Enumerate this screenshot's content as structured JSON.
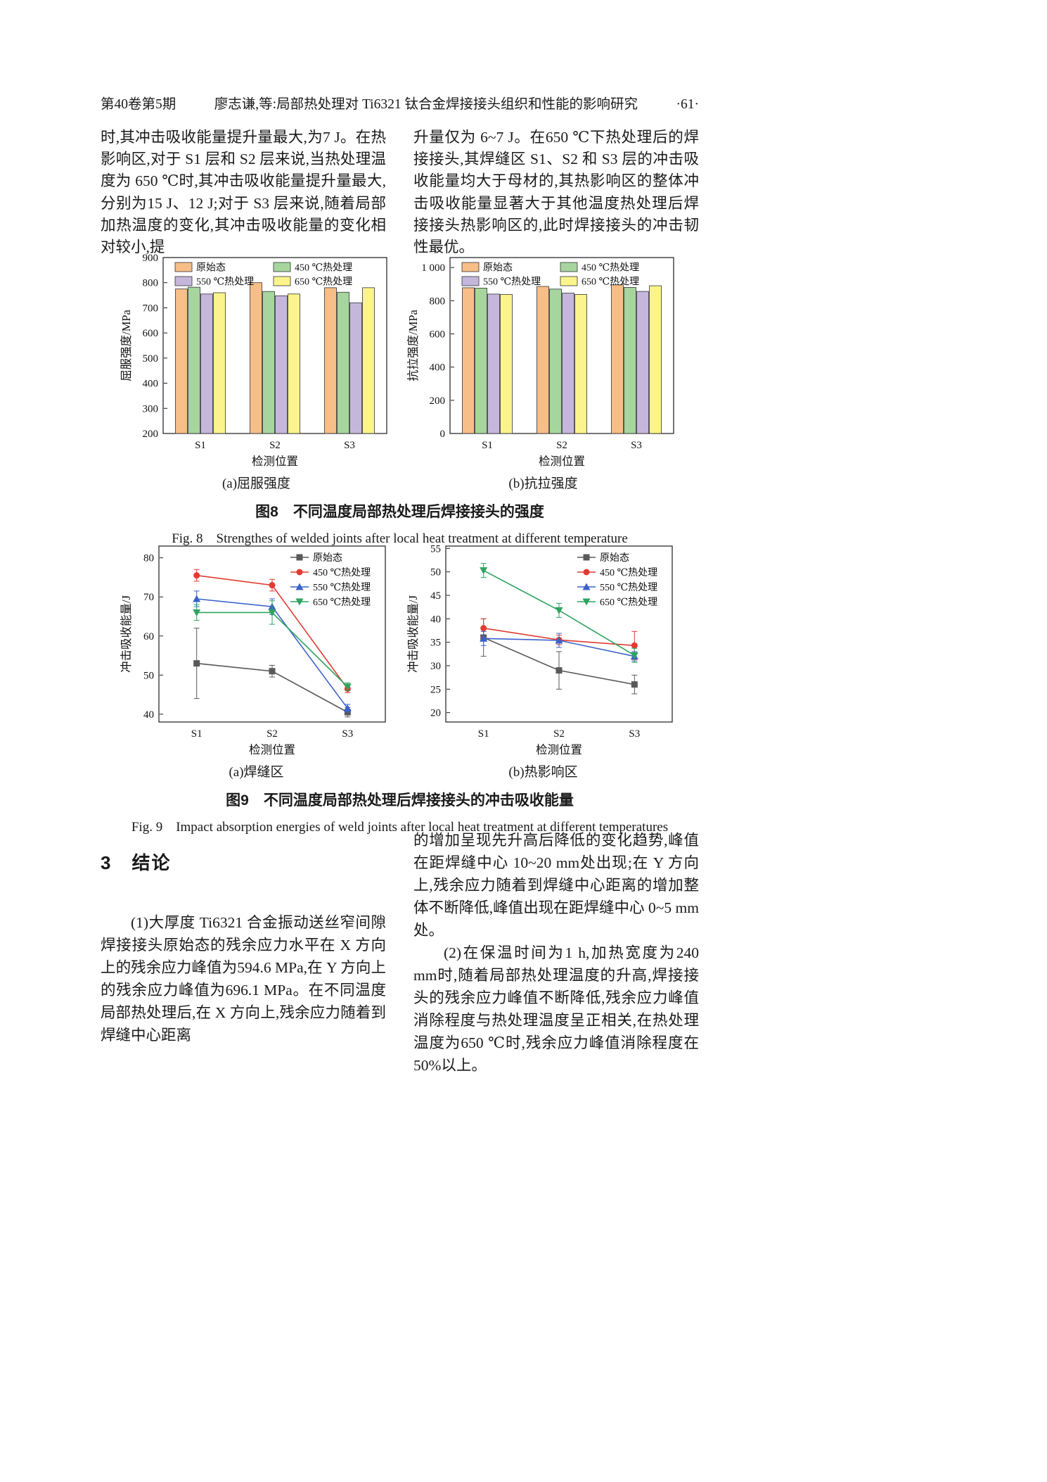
{
  "header": {
    "volume_issue": "第40卷第5期",
    "title": "廖志谦,等:局部热处理对 Ti6321 钛合金焊接接头组织和性能的影响研究",
    "page_number": "·61·"
  },
  "body_top": {
    "left": "时,其冲击吸收能量提升量最大,为7 J。在热影响区,对于 S1 层和 S2 层来说,当热处理温度为 650 ℃时,其冲击吸收能量提升量最大,分别为15 J、12 J;对于 S3 层来说,随着局部加热温度的变化,其冲击吸收能量的变化相对较小,提",
    "right": "升量仅为 6~7 J。在650 ℃下热处理后的焊接接头,其焊缝区 S1、S2 和 S3 层的冲击吸收能量均大于母材的,其热影响区的整体冲击吸收能量显著大于其他温度热处理后焊接接头热影响区的,此时焊接接头的冲击韧性最优。"
  },
  "figure8": {
    "sub_a": "(a)屈服强度",
    "sub_b": "(b)抗拉强度",
    "caption_cn": "图8　不同温度局部热处理后焊接接头的强度",
    "caption_en": "Fig. 8　Strengthes of welded joints after local heat treatment at different temperature"
  },
  "figure9": {
    "sub_a": "(a)焊缝区",
    "sub_b": "(b)热影响区",
    "caption_cn": "图9　不同温度局部热处理后焊接接头的冲击吸收能量",
    "caption_en": "Fig. 9　Impact absorption energies of weld joints after local heat treatment at different temperatures"
  },
  "conclusion": {
    "heading": "3　结论",
    "p1": "(1)大厚度 Ti6321 合金振动送丝窄间隙焊接接头原始态的残余应力水平在 X 方向上的残余应力峰值为594.6 MPa,在 Y 方向上的残余应力峰值为696.1 MPa。在不同温度局部热处理后,在 X 方向上,残余应力随着到焊缝中心距离",
    "p2": "的增加呈现先升高后降低的变化趋势,峰值在距焊缝中心 10~20 mm处出现;在 Y 方向上,残余应力随着到焊缝中心距离的增加整体不断降低,峰值出现在距焊缝中心 0~5 mm处。",
    "p3": "(2)在保温时间为1 h,加热宽度为240 mm时,随着局部热处理温度的升高,焊接接头的残余应力峰值不断降低,残余应力峰值消除程度与热处理温度呈正相关,在热处理温度为650 ℃时,残余应力峰值消除程度在 50%以上。"
  },
  "chart_data": [
    {
      "id": "chart-8a",
      "type": "bar",
      "xlabel": "检测位置",
      "ylabel": "屈服强度/MPa",
      "ylim": [
        200,
        900
      ],
      "yticks": [
        200,
        300,
        400,
        500,
        600,
        700,
        800,
        900
      ],
      "categories": [
        "S1",
        "S2",
        "S3"
      ],
      "series": [
        {
          "name": "原始态",
          "color": "#F7BE88",
          "values": [
            775,
            800,
            780
          ]
        },
        {
          "name": "450 ℃热处理",
          "color": "#A6D69E",
          "values": [
            782,
            765,
            762
          ]
        },
        {
          "name": "550 ℃热处理",
          "color": "#C5B7DC",
          "values": [
            755,
            748,
            720
          ]
        },
        {
          "name": "650 ℃热处理",
          "color": "#FBF48C",
          "values": [
            760,
            755,
            780
          ]
        }
      ],
      "legend_position": "top-center",
      "grid": false
    },
    {
      "id": "chart-8b",
      "type": "bar",
      "xlabel": "检测位置",
      "ylabel": "抗拉强度/MPa",
      "ylim": [
        0,
        1060
      ],
      "yticks": [
        0,
        200,
        400,
        600,
        800,
        1000
      ],
      "categories": [
        "S1",
        "S2",
        "S3"
      ],
      "series": [
        {
          "name": "原始态",
          "color": "#F7BE88",
          "values": [
            878,
            886,
            896
          ]
        },
        {
          "name": "450 ℃热处理",
          "color": "#A6D69E",
          "values": [
            876,
            870,
            880
          ]
        },
        {
          "name": "550 ℃热处理",
          "color": "#C5B7DC",
          "values": [
            840,
            846,
            856
          ]
        },
        {
          "name": "650 ℃热处理",
          "color": "#FBF48C",
          "values": [
            838,
            838,
            890
          ]
        }
      ],
      "legend_position": "top-center",
      "grid": false
    },
    {
      "id": "chart-9a",
      "type": "line",
      "xlabel": "检测位置",
      "ylabel": "冲击吸收能量/J",
      "ylim": [
        38,
        83
      ],
      "yticks": [
        40,
        50,
        60,
        70,
        80
      ],
      "categories": [
        "S1",
        "S2",
        "S3"
      ],
      "series": [
        {
          "name": "原始态",
          "color": "#595959",
          "marker": "square",
          "values": [
            53,
            51,
            40.5
          ],
          "errors": [
            9,
            1.5,
            1.2
          ]
        },
        {
          "name": "450 ℃热处理",
          "color": "#E03C32",
          "marker": "circle",
          "values": [
            75.5,
            73,
            46.5
          ],
          "errors": [
            1.5,
            1.5,
            1
          ]
        },
        {
          "name": "550 ℃热处理",
          "color": "#3A62C8",
          "marker": "triangle-up",
          "values": [
            69.5,
            67.5,
            41.5
          ],
          "errors": [
            2,
            2,
            1
          ]
        },
        {
          "name": "650 ℃热处理",
          "color": "#2FA360",
          "marker": "triangle-down",
          "values": [
            66,
            66,
            47
          ],
          "errors": [
            2,
            3,
            1
          ]
        }
      ],
      "legend_position": "top-right",
      "grid": false
    },
    {
      "id": "chart-9b",
      "type": "line",
      "xlabel": "检测位置",
      "ylabel": "冲击吸收能量/J",
      "ylim": [
        18,
        55.5
      ],
      "yticks": [
        20,
        25,
        30,
        35,
        40,
        45,
        50,
        55
      ],
      "categories": [
        "S1",
        "S2",
        "S3"
      ],
      "series": [
        {
          "name": "原始态",
          "color": "#595959",
          "marker": "square",
          "values": [
            36,
            29,
            26
          ],
          "errors": [
            4,
            4,
            2
          ]
        },
        {
          "name": "450 ℃热处理",
          "color": "#E03C32",
          "marker": "circle",
          "values": [
            38,
            35.5,
            34.3
          ],
          "errors": [
            2,
            1,
            3
          ]
        },
        {
          "name": "550 ℃热处理",
          "color": "#3A62C8",
          "marker": "triangle-up",
          "values": [
            35.8,
            35.4,
            32
          ],
          "errors": [
            1.5,
            1.5,
            1
          ]
        },
        {
          "name": "650 ℃热处理",
          "color": "#2FA360",
          "marker": "triangle-down",
          "values": [
            50.3,
            41.8,
            32.2
          ],
          "errors": [
            1.5,
            1.5,
            1.5
          ]
        }
      ],
      "legend_position": "top-right",
      "grid": false
    }
  ]
}
